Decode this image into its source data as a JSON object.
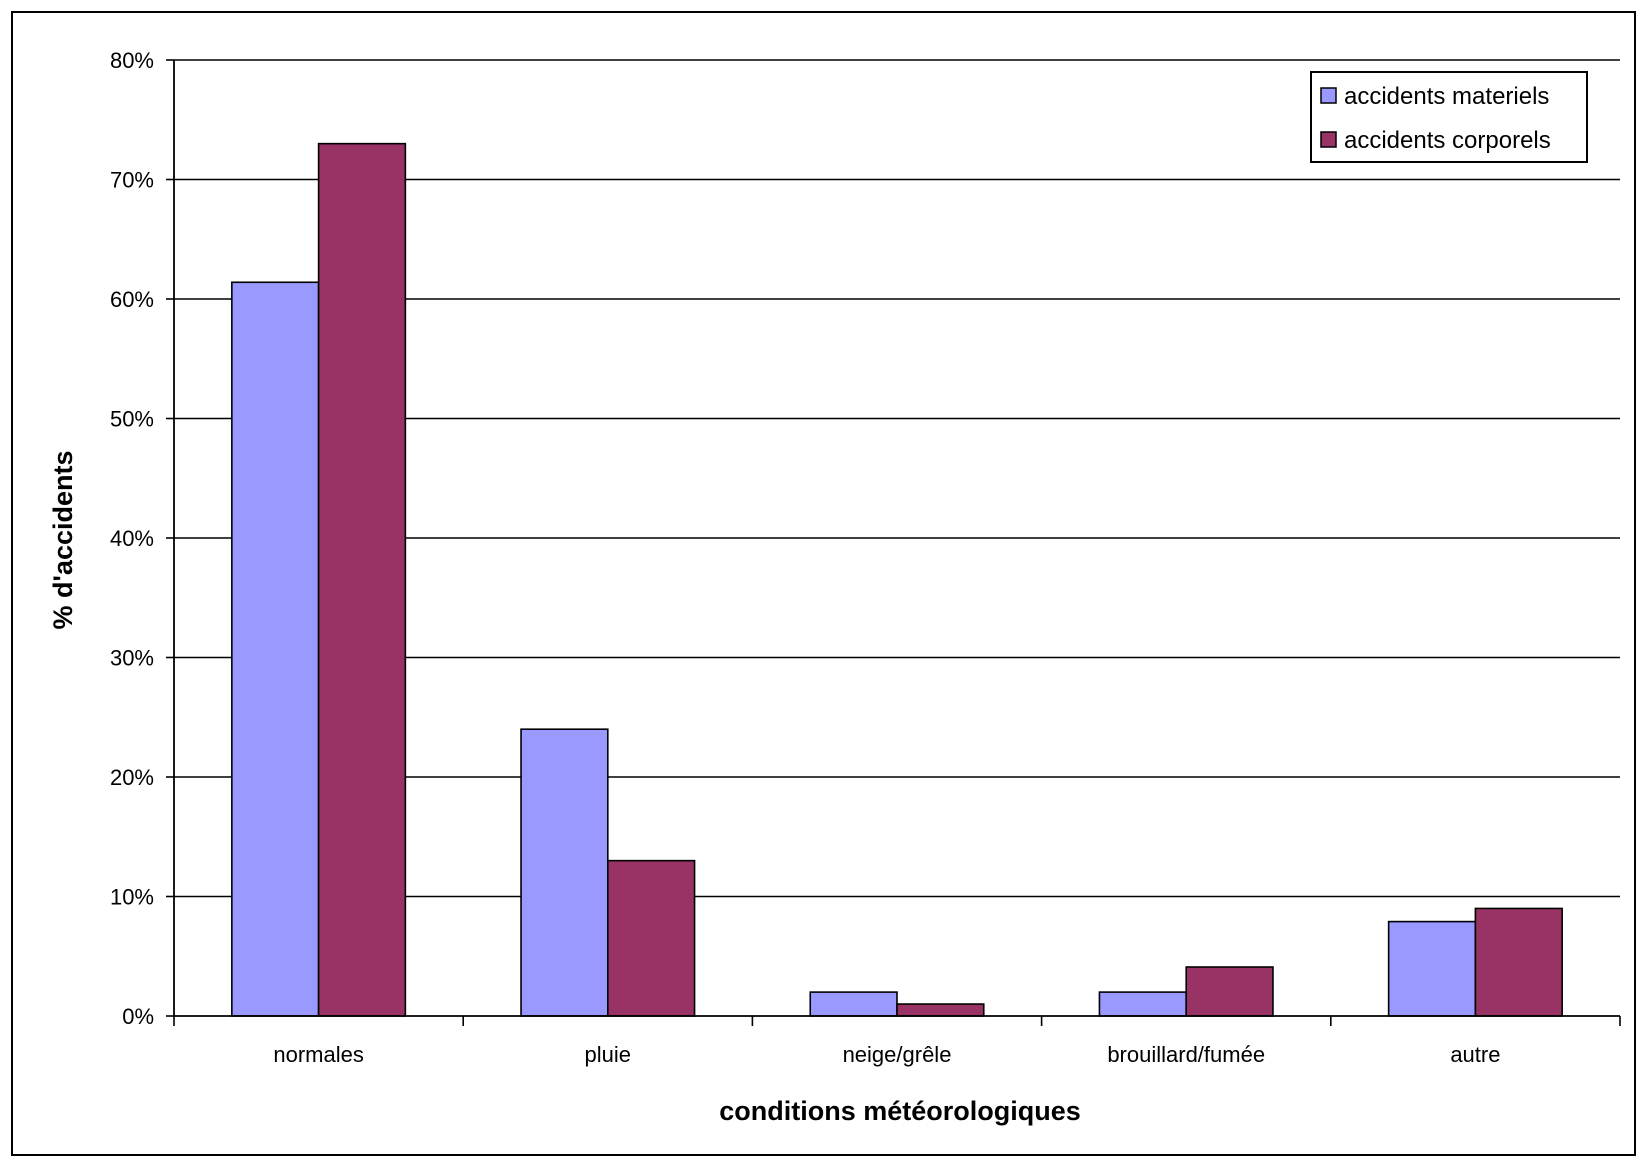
{
  "chart_data": {
    "type": "bar",
    "title": "",
    "xlabel": "conditions météorologiques",
    "ylabel": "% d'accidents",
    "categories": [
      "normales",
      "pluie",
      "neige/grêle",
      "brouillard/fumée",
      "autre"
    ],
    "series": [
      {
        "name": "accidents materiels",
        "values": [
          61.4,
          24.0,
          2.0,
          2.0,
          7.9
        ],
        "color": "#9999ff"
      },
      {
        "name": "accidents corporels",
        "values": [
          73.0,
          13.0,
          1.0,
          4.1,
          9.0
        ],
        "color": "#993366"
      }
    ],
    "ylim": [
      0,
      80
    ],
    "yticks": [
      0,
      10,
      20,
      30,
      40,
      50,
      60,
      70,
      80
    ],
    "ytick_format": "percent",
    "grid": true,
    "legend_position": "top-right"
  }
}
